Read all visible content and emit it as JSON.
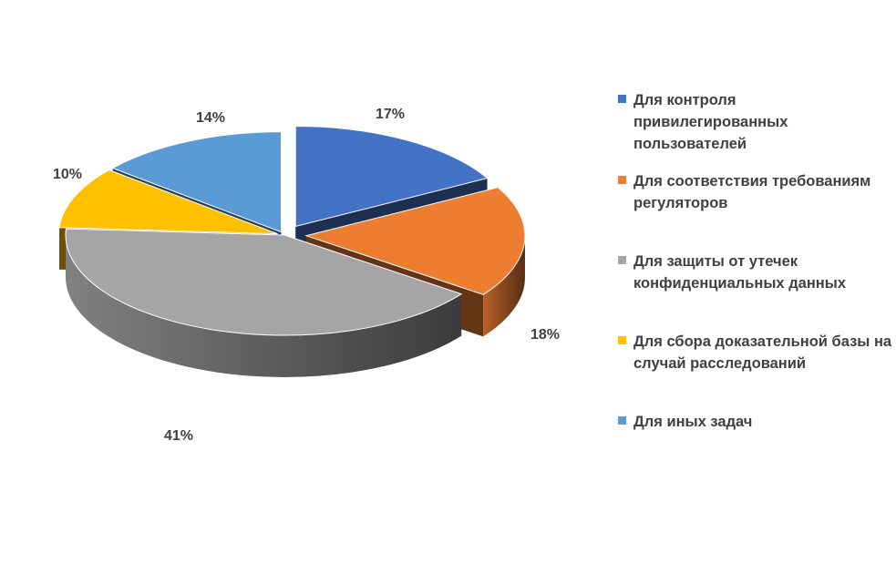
{
  "chart_data": {
    "type": "pie",
    "three_d": true,
    "title": "",
    "legend_position": "right",
    "series": [
      {
        "name": "Для контроля привилегированных пользователей",
        "value": 17,
        "label": "17%",
        "color": "#4472C4"
      },
      {
        "name": "Для соответствия требованиям регуляторов",
        "value": 18,
        "label": "18%",
        "color": "#ED7D31"
      },
      {
        "name": "Для защиты от утечек конфиденциальных данных",
        "value": 41,
        "label": "41%",
        "color": "#A5A5A5"
      },
      {
        "name": "Для сбора доказательной базы на случай расследований",
        "value": 10,
        "label": "10%",
        "color": "#FFC000"
      },
      {
        "name": "Для иных задач",
        "value": 14,
        "label": "14%",
        "color": "#5B9BD5"
      }
    ]
  }
}
